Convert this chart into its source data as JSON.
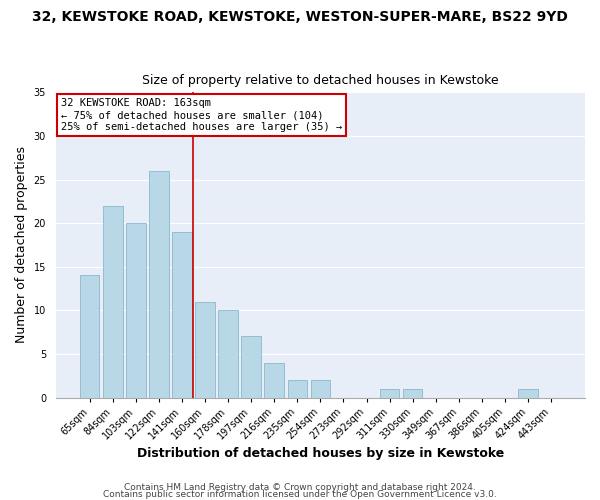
{
  "title": "32, KEWSTOKE ROAD, KEWSTOKE, WESTON-SUPER-MARE, BS22 9YD",
  "subtitle": "Size of property relative to detached houses in Kewstoke",
  "xlabel": "Distribution of detached houses by size in Kewstoke",
  "ylabel": "Number of detached properties",
  "bar_labels": [
    "65sqm",
    "84sqm",
    "103sqm",
    "122sqm",
    "141sqm",
    "160sqm",
    "178sqm",
    "197sqm",
    "216sqm",
    "235sqm",
    "254sqm",
    "273sqm",
    "292sqm",
    "311sqm",
    "330sqm",
    "349sqm",
    "367sqm",
    "386sqm",
    "405sqm",
    "424sqm",
    "443sqm"
  ],
  "bar_values": [
    14,
    22,
    20,
    26,
    19,
    11,
    10,
    7,
    4,
    2,
    2,
    0,
    0,
    1,
    1,
    0,
    0,
    0,
    0,
    1,
    0
  ],
  "bar_color": "#b8d8e8",
  "bar_edge_color": "#8ab8cc",
  "highlight_bar_index": 5,
  "highlight_color": "#cc0000",
  "annotation_line1": "32 KEWSTOKE ROAD: 163sqm",
  "annotation_line2": "← 75% of detached houses are smaller (104)",
  "annotation_line3": "25% of semi-detached houses are larger (35) →",
  "annotation_box_color": "#ffffff",
  "annotation_box_edge": "#cc0000",
  "ylim": [
    0,
    35
  ],
  "yticks": [
    0,
    5,
    10,
    15,
    20,
    25,
    30,
    35
  ],
  "footer1": "Contains HM Land Registry data © Crown copyright and database right 2024.",
  "footer2": "Contains public sector information licensed under the Open Government Licence v3.0.",
  "background_color": "#ffffff",
  "plot_bg_color": "#e8eef8",
  "grid_color": "#ffffff",
  "title_fontsize": 10,
  "subtitle_fontsize": 9,
  "tick_fontsize": 7,
  "label_fontsize": 9,
  "footer_fontsize": 6.5
}
